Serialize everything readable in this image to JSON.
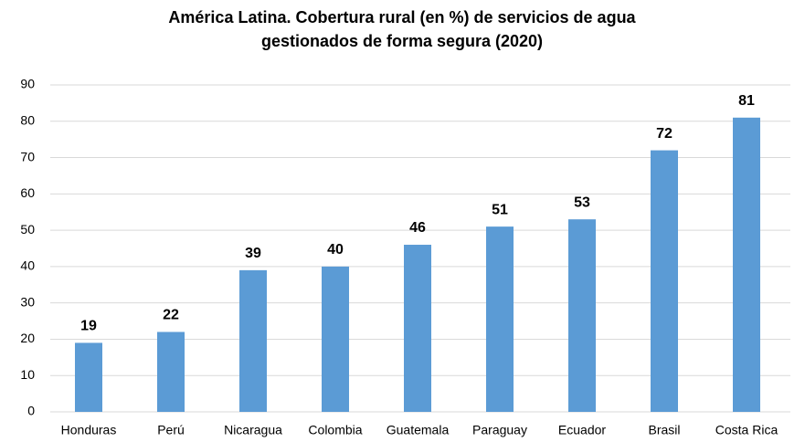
{
  "chart_data": {
    "type": "bar",
    "title": [
      "América  Latina. Cobertura rural (en %) de servicios de agua",
      "gestionados de forma segura (2020)"
    ],
    "categories": [
      "Honduras",
      "Perú",
      "Nicaragua",
      "Colombia",
      "Guatemala",
      "Paraguay",
      "Ecuador",
      "Brasil",
      "Costa Rica"
    ],
    "values": [
      19,
      22,
      39,
      40,
      46,
      51,
      53,
      72,
      81
    ],
    "color": "#5b9bd5",
    "ylim": [
      0,
      90
    ],
    "yticks": [
      0,
      10,
      20,
      30,
      40,
      50,
      60,
      70,
      80,
      90
    ],
    "grid": true
  }
}
